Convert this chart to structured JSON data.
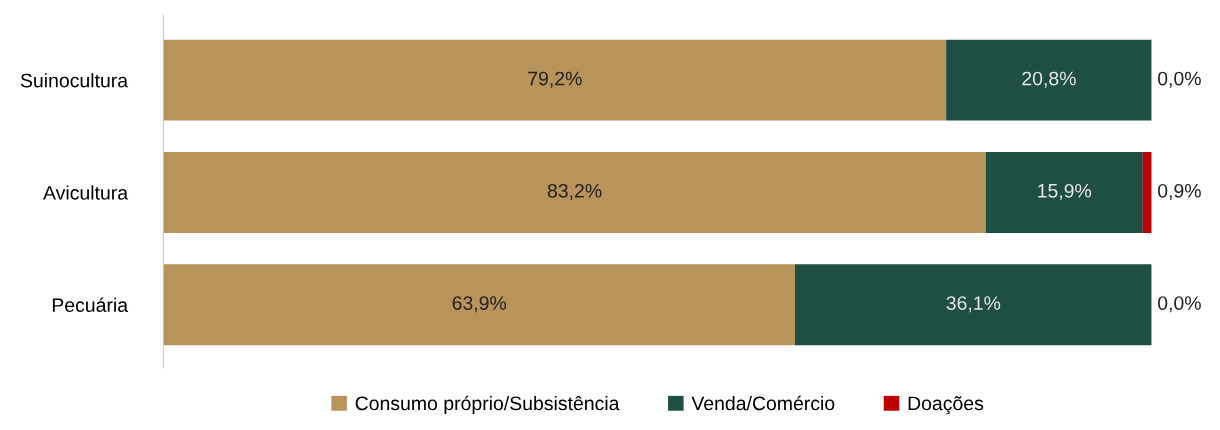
{
  "chart_data": {
    "type": "bar",
    "orientation": "horizontal",
    "stacked": true,
    "categories": [
      "Suinocultura",
      "Avicultura",
      "Pecuária"
    ],
    "series": [
      {
        "name": "Consumo próprio/Subsistência",
        "color": "#b8935a",
        "values": [
          79.2,
          83.2,
          63.9
        ],
        "value_labels": [
          "79,2%",
          "83,2%",
          "63,9%"
        ]
      },
      {
        "name": "Venda/Comércio",
        "color": "#1f4e44",
        "values": [
          20.8,
          15.9,
          36.1
        ],
        "value_labels": [
          "20,8%",
          "15,9%",
          "36,1%"
        ]
      },
      {
        "name": "Doações",
        "color": "#c00000",
        "values": [
          0.0,
          0.9,
          0.0
        ],
        "value_labels": [
          "0,0%",
          "0,9%",
          "0,0%"
        ]
      }
    ],
    "xlim": [
      0,
      100
    ],
    "tick_labels": "y",
    "grid": false,
    "legend": "bottom"
  }
}
